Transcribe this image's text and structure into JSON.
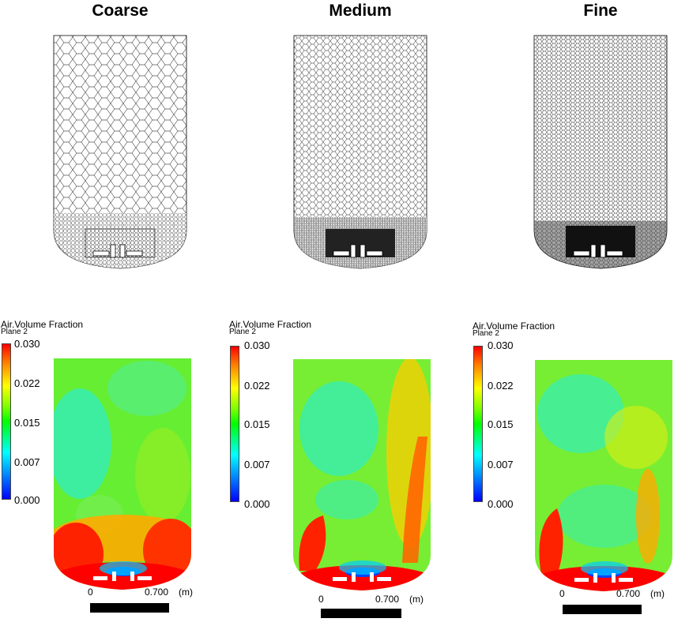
{
  "columns": [
    {
      "title": "Coarse"
    },
    {
      "title": "Medium"
    },
    {
      "title": "Fine"
    }
  ],
  "legend": {
    "title": "Air.Volume Fraction",
    "subtitle": "Plane 2",
    "ticks": [
      "0.030",
      "0.022",
      "0.015",
      "0.007",
      "0.000"
    ]
  },
  "scale": {
    "start": "0",
    "end": "0.700",
    "unit": "(m)"
  },
  "colors": {
    "high": "#ff0000",
    "mid_high": "#ffff00",
    "mid": "#00ff00",
    "mid_low": "#00ffff",
    "low": "#0000ff"
  }
}
